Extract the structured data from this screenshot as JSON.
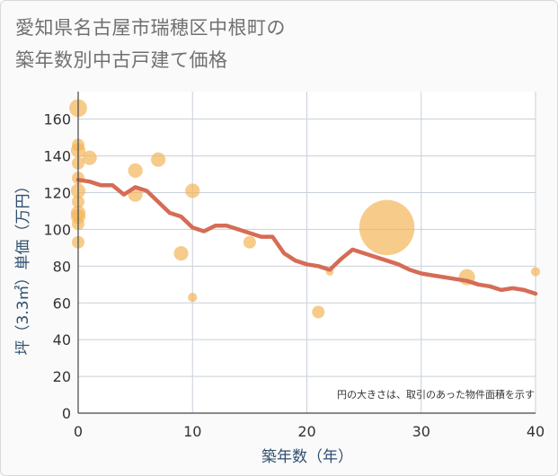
{
  "title_line1": "愛知県名古屋市瑞穂区中根町の",
  "title_line2": "築年数別中古戸建て価格",
  "chart_data": {
    "type": "scatter",
    "title": "愛知県名古屋市瑞穂区中根町の築年数別中古戸建て価格",
    "xlabel": "築年数（年）",
    "ylabel": "坪（3.3㎡）単価（万円）",
    "xlim": [
      0,
      40
    ],
    "ylim": [
      0,
      175
    ],
    "xticks": [
      0,
      10,
      20,
      30,
      40
    ],
    "yticks": [
      0,
      20,
      40,
      60,
      80,
      100,
      120,
      140,
      160
    ],
    "grid": true,
    "note": "円の大きさは、取引のあった物件面積を示す",
    "colors": {
      "bubble": "#f3b558",
      "line": "#d56c56",
      "grid": "#c8d0d8"
    },
    "bubbles": [
      {
        "x": 0,
        "y": 166,
        "size": 3
      },
      {
        "x": 0,
        "y": 146,
        "size": 1.5
      },
      {
        "x": 0,
        "y": 143,
        "size": 2
      },
      {
        "x": 0,
        "y": 136,
        "size": 1.5
      },
      {
        "x": 0,
        "y": 128,
        "size": 1.5
      },
      {
        "x": 0,
        "y": 121,
        "size": 2
      },
      {
        "x": 0,
        "y": 115,
        "size": 1.5
      },
      {
        "x": 0,
        "y": 109,
        "size": 2
      },
      {
        "x": 0,
        "y": 107,
        "size": 2
      },
      {
        "x": 0,
        "y": 103,
        "size": 1.5
      },
      {
        "x": 0,
        "y": 93,
        "size": 1.5
      },
      {
        "x": 1,
        "y": 139,
        "size": 2
      },
      {
        "x": 5,
        "y": 132,
        "size": 2
      },
      {
        "x": 5,
        "y": 119,
        "size": 2
      },
      {
        "x": 7,
        "y": 138,
        "size": 2
      },
      {
        "x": 9,
        "y": 87,
        "size": 2
      },
      {
        "x": 10,
        "y": 121,
        "size": 2
      },
      {
        "x": 10,
        "y": 63,
        "size": 0.8
      },
      {
        "x": 15,
        "y": 93,
        "size": 1.5
      },
      {
        "x": 21,
        "y": 55,
        "size": 1.5
      },
      {
        "x": 22,
        "y": 77,
        "size": 0.6
      },
      {
        "x": 27,
        "y": 101,
        "size": 29
      },
      {
        "x": 34,
        "y": 74,
        "size": 2.5
      },
      {
        "x": 40,
        "y": 77,
        "size": 0.8
      }
    ],
    "trend": {
      "x": [
        0,
        1,
        2,
        3,
        4,
        5,
        6,
        7,
        8,
        9,
        10,
        11,
        12,
        13,
        14,
        15,
        16,
        17,
        18,
        19,
        20,
        21,
        22,
        23,
        24,
        25,
        26,
        27,
        28,
        29,
        30,
        31,
        32,
        33,
        34,
        35,
        36,
        37,
        38,
        39,
        40
      ],
      "y": [
        127,
        126,
        124,
        124,
        119,
        123,
        121,
        115,
        109,
        107,
        101,
        99,
        102,
        102,
        100,
        98,
        96,
        96,
        87,
        83,
        81,
        80,
        78,
        84,
        89,
        87,
        85,
        83,
        81,
        78,
        76,
        75,
        74,
        73,
        72,
        70,
        69,
        67,
        68,
        67,
        65
      ]
    }
  }
}
